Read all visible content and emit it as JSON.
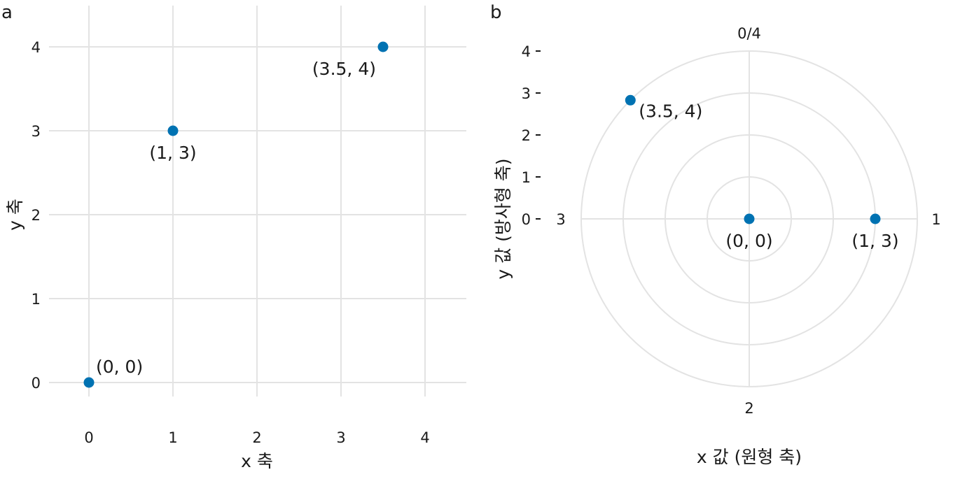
{
  "chart_data": [
    {
      "type": "scatter",
      "panel_label": "a",
      "xlabel": "x 축",
      "ylabel": "y 축",
      "xlim": [
        -0.45,
        4.5
      ],
      "ylim": [
        -0.17,
        4.5
      ],
      "xticks": [
        "0",
        "1",
        "2",
        "3",
        "4"
      ],
      "yticks": [
        "0",
        "1",
        "2",
        "3",
        "4"
      ],
      "grid": true,
      "points": [
        {
          "x": 0,
          "y": 0,
          "label": "(0, 0)"
        },
        {
          "x": 1,
          "y": 3,
          "label": "(1, 3)"
        },
        {
          "x": 3.5,
          "y": 4,
          "label": "(3.5, 4)"
        }
      ],
      "point_color": "#0072B2"
    },
    {
      "type": "scatter",
      "coord": "polar",
      "panel_label": "b",
      "xlabel": "x 값 (원형 축)",
      "ylabel": "y 값 (방사형 축)",
      "theta_range": [
        0,
        4
      ],
      "r_range": [
        0,
        4
      ],
      "theta_ticks": [
        "0/4",
        "1",
        "2",
        "3"
      ],
      "r_ticks": [
        "0",
        "1",
        "2",
        "3",
        "4"
      ],
      "grid": true,
      "points": [
        {
          "x": 0,
          "y": 0,
          "label": "(0, 0)"
        },
        {
          "x": 1,
          "y": 3,
          "label": "(1, 3)"
        },
        {
          "x": 3.5,
          "y": 4,
          "label": "(3.5, 4)"
        }
      ],
      "point_color": "#0072B2"
    }
  ]
}
